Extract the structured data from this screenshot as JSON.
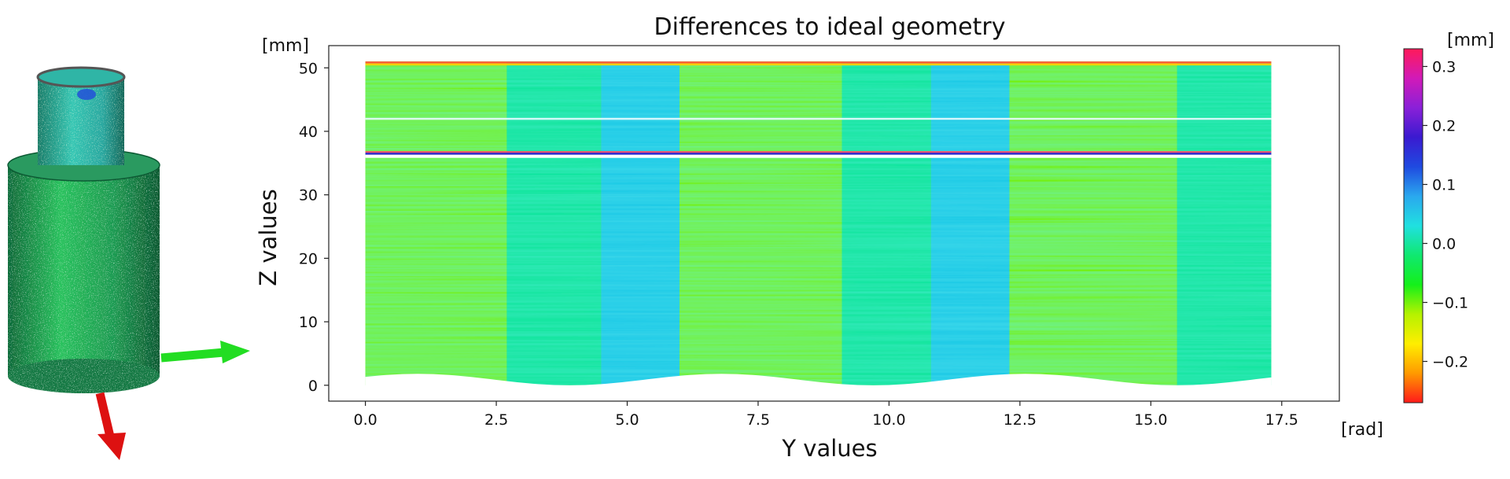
{
  "chart_data": {
    "type": "heatmap",
    "title": "Differences to ideal geometry",
    "xlabel": "Y values",
    "ylabel": "Z values",
    "x_unit": "[rad]",
    "y_unit": "[mm]",
    "xlim": [
      -0.7,
      18.6
    ],
    "ylim": [
      -2.5,
      53.5
    ],
    "x_ticks": [
      0.0,
      2.5,
      5.0,
      7.5,
      10.0,
      12.5,
      15.0,
      17.5
    ],
    "y_ticks": [
      0,
      10,
      20,
      30,
      40,
      50
    ],
    "x_tick_labels": [
      "0.0",
      "2.5",
      "5.0",
      "7.5",
      "10.0",
      "12.5",
      "15.0",
      "17.5"
    ],
    "y_tick_labels": [
      "0",
      "10",
      "20",
      "30",
      "40",
      "50"
    ],
    "data_extent": {
      "y_min": 0.0,
      "y_max": 17.3,
      "z_min": 0.0,
      "z_max": 51.0
    },
    "step_edge_z": 36.5,
    "groove_z": 42.0,
    "deviation_bands": [
      {
        "from": 0.0,
        "to": 2.7,
        "value": -0.1
      },
      {
        "from": 2.7,
        "to": 4.5,
        "value": 0.0
      },
      {
        "from": 4.5,
        "to": 6.0,
        "value": 0.05
      },
      {
        "from": 6.0,
        "to": 9.1,
        "value": -0.1
      },
      {
        "from": 9.1,
        "to": 10.8,
        "value": 0.0
      },
      {
        "from": 10.8,
        "to": 12.3,
        "value": 0.05
      },
      {
        "from": 12.3,
        "to": 15.5,
        "value": -0.1
      },
      {
        "from": 15.5,
        "to": 17.3,
        "value": 0.0
      }
    ],
    "colorbar": {
      "unit": "[mm]",
      "vmin": -0.27,
      "vmax": 0.33,
      "ticks": [
        0.3,
        0.2,
        0.1,
        0.0,
        -0.1,
        -0.2
      ],
      "tick_labels": [
        "0.3",
        "0.2",
        "0.1",
        "0.0",
        "−0.1",
        "−0.2"
      ],
      "colors": [
        "#ff1a1a",
        "#ff9a00",
        "#ffee00",
        "#b5f200",
        "#14f01a",
        "#10e870",
        "#20e0e0",
        "#2aa8ee",
        "#1f4ae0",
        "#3a1ad0",
        "#8a20d8",
        "#d11ab8",
        "#ff1a5a"
      ]
    }
  },
  "model_view": {
    "description_colors": {
      "upper_cylinder": "#2fbfb0",
      "lower_cylinder": "#1fae5a"
    },
    "axis_colors": {
      "x_axis": "#22dd22",
      "z_axis": "#dd1111"
    }
  }
}
